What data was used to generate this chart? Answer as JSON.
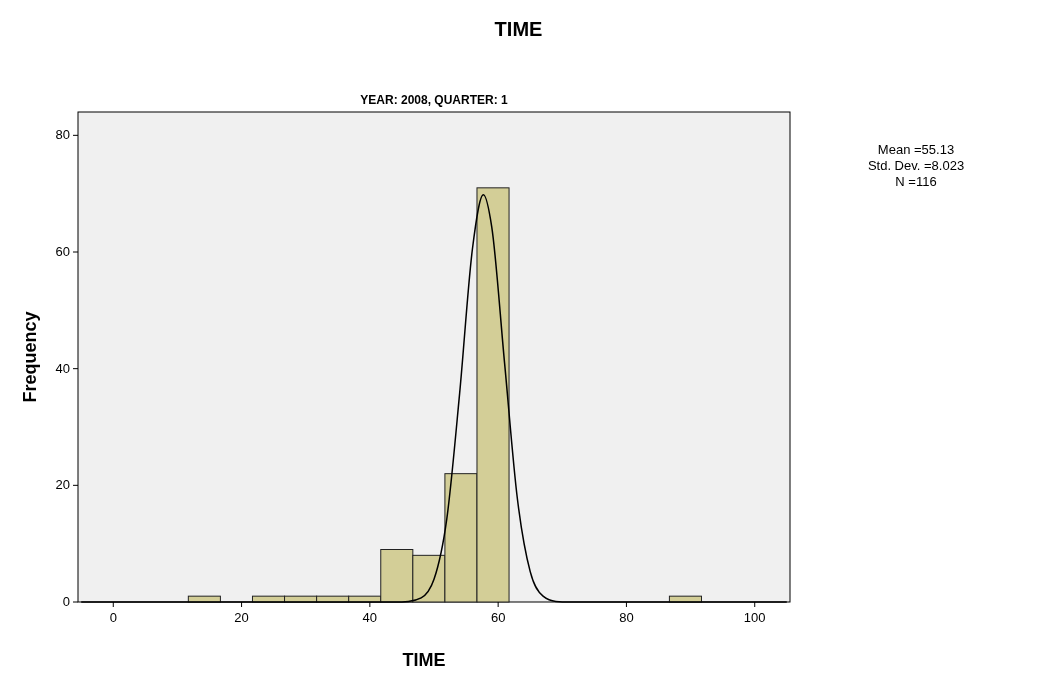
{
  "chart_data": {
    "type": "histogram",
    "title": "TIME",
    "subtitle": "YEAR: 2008, QUARTER: 1",
    "xlabel": "TIME",
    "ylabel": "Frequency",
    "bins": [
      11.7,
      16.7,
      21.7,
      26.7,
      31.7,
      36.7,
      41.7,
      46.7,
      51.7,
      56.7,
      61.7,
      66.7,
      71.7,
      76.7,
      81.7,
      86.7,
      91.7
    ],
    "values": [
      1,
      0,
      1,
      1,
      1,
      1,
      9,
      8,
      22,
      71,
      0,
      0,
      0,
      0,
      0,
      1
    ],
    "color": "#d3ce97",
    "series": [
      {
        "type": "line",
        "color": "#000000",
        "x": [
          -5,
          40,
          44,
          46,
          48,
          50,
          52,
          54,
          56,
          57.7,
          59,
          61,
          63,
          65,
          67,
          69,
          71,
          75,
          105
        ],
        "values": [
          0,
          0,
          0,
          0.1,
          0.7,
          3.9,
          14.3,
          35.8,
          60.6,
          69.8,
          64.3,
          41,
          17.7,
          5.2,
          1,
          0.1,
          0,
          0,
          0
        ]
      }
    ],
    "xlim": [
      -5.5,
      105.5
    ],
    "ylim": [
      0,
      84
    ],
    "xticks": [
      0,
      20,
      40,
      60,
      80,
      100
    ],
    "yticks": [
      0,
      20,
      40,
      60,
      80
    ],
    "grid": false,
    "annotations": [
      "Mean =55.13",
      "Std. Dev. =8.023",
      "N =116"
    ]
  }
}
